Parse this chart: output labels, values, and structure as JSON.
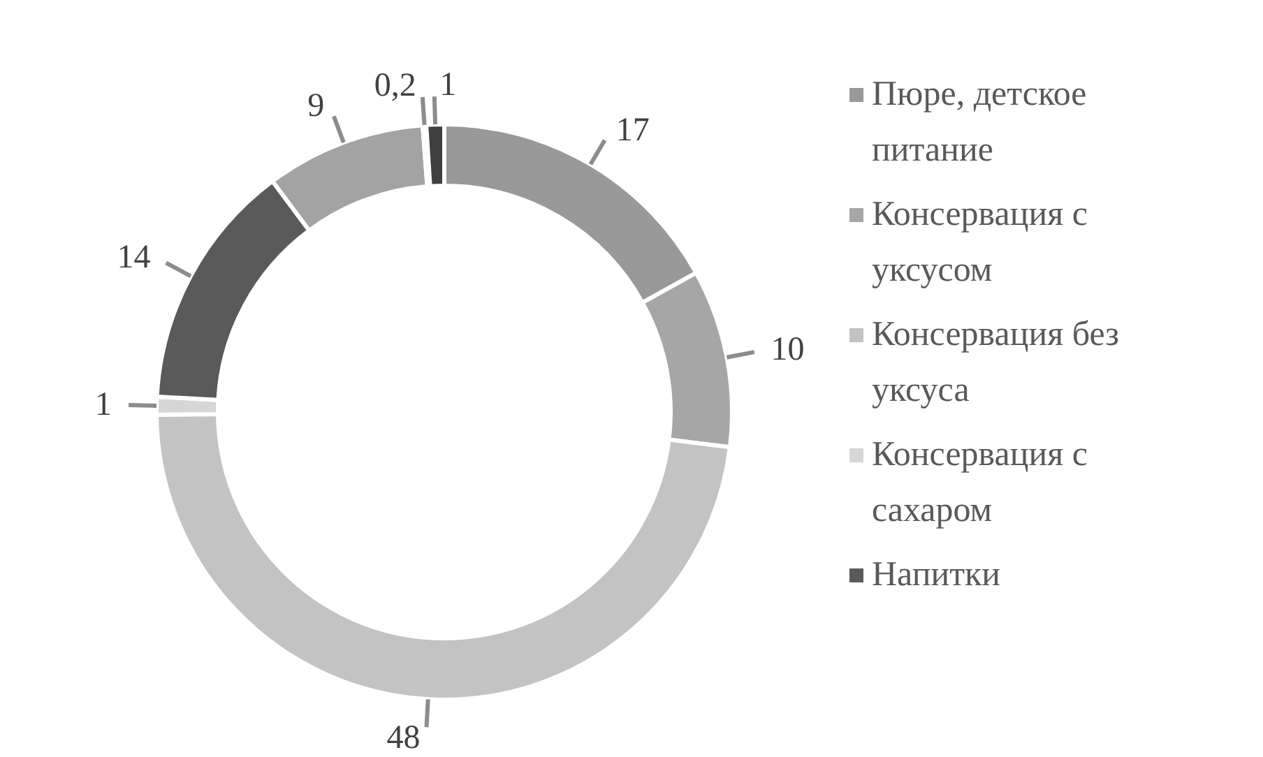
{
  "chart_data": {
    "type": "donut",
    "categories": [
      "Пюре, детское питание",
      "Консервация с уксусом",
      "Консервация без уксуса",
      "Консервация с сахаром",
      "Напитки",
      null,
      null,
      null
    ],
    "values": [
      17,
      10,
      48,
      1,
      14,
      9,
      0.2,
      1
    ],
    "value_labels": [
      "17",
      "10",
      "48",
      "1",
      "14",
      "9",
      "0,2",
      "1"
    ],
    "colors": [
      "#999999",
      "#a6a6a6",
      "#c3c3c3",
      "#d6d6d6",
      "#5a5a5a",
      "#a3a3a3",
      "#cccccc",
      "#3f3f3f"
    ],
    "legend": "right"
  }
}
